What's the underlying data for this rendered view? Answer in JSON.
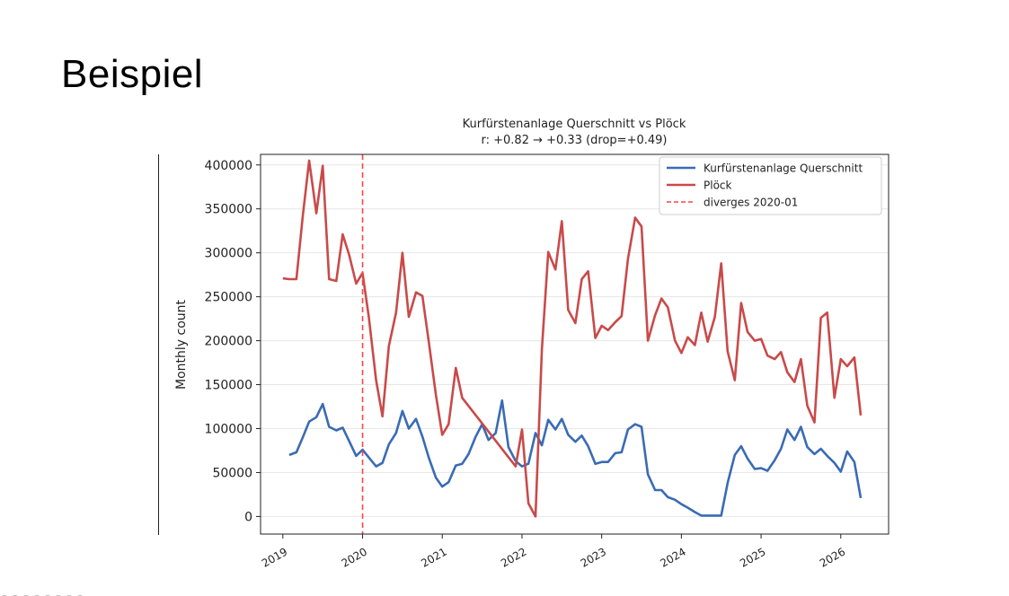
{
  "slide": {
    "title": "Beispiel"
  },
  "chart_data": {
    "type": "line",
    "title": "Kurfürstenanlage Querschnitt  vs  Plöck",
    "subtitle": "r: +0.82 → +0.33  (drop=+0.49)",
    "xlabel": "",
    "ylabel": "Monthly count",
    "x_ticks": [
      "2019",
      "2020",
      "2021",
      "2022",
      "2023",
      "2024",
      "2025",
      "2026"
    ],
    "y_ticks": [
      0,
      50000,
      100000,
      150000,
      200000,
      250000,
      300000,
      350000,
      400000
    ],
    "xlim": [
      2018.72,
      2026.6
    ],
    "ylim": [
      -20000,
      412000
    ],
    "grid": "y",
    "legend_position": "top-right",
    "series": [
      {
        "name": "Kurfürstenanlage Querschnitt",
        "color": "#3a6bb5",
        "points": [
          [
            2019.08,
            70000
          ],
          [
            2019.17,
            73000
          ],
          [
            2019.25,
            90000
          ],
          [
            2019.33,
            108000
          ],
          [
            2019.42,
            113000
          ],
          [
            2019.5,
            128000
          ],
          [
            2019.58,
            102000
          ],
          [
            2019.67,
            98000
          ],
          [
            2019.75,
            101000
          ],
          [
            2019.83,
            86000
          ],
          [
            2019.92,
            69000
          ],
          [
            2020.0,
            76000
          ],
          [
            2020.08,
            67000
          ],
          [
            2020.17,
            57000
          ],
          [
            2020.25,
            61000
          ],
          [
            2020.33,
            82000
          ],
          [
            2020.42,
            95000
          ],
          [
            2020.5,
            120000
          ],
          [
            2020.58,
            100000
          ],
          [
            2020.67,
            111000
          ],
          [
            2020.75,
            91000
          ],
          [
            2020.83,
            67000
          ],
          [
            2020.92,
            44000
          ],
          [
            2021.0,
            34000
          ],
          [
            2021.08,
            39000
          ],
          [
            2021.17,
            58000
          ],
          [
            2021.25,
            60000
          ],
          [
            2021.33,
            71000
          ],
          [
            2021.42,
            91000
          ],
          [
            2021.5,
            105000
          ],
          [
            2021.58,
            87000
          ],
          [
            2021.67,
            95000
          ],
          [
            2021.75,
            132000
          ],
          [
            2021.83,
            79000
          ],
          [
            2021.92,
            63000
          ],
          [
            2022.0,
            57000
          ],
          [
            2022.08,
            60000
          ],
          [
            2022.17,
            95000
          ],
          [
            2022.25,
            81000
          ],
          [
            2022.33,
            110000
          ],
          [
            2022.42,
            99000
          ],
          [
            2022.5,
            111000
          ],
          [
            2022.58,
            93000
          ],
          [
            2022.67,
            85000
          ],
          [
            2022.75,
            92000
          ],
          [
            2022.83,
            80000
          ],
          [
            2022.92,
            60000
          ],
          [
            2023.0,
            62000
          ],
          [
            2023.08,
            62000
          ],
          [
            2023.17,
            72000
          ],
          [
            2023.25,
            73000
          ],
          [
            2023.33,
            99000
          ],
          [
            2023.42,
            105000
          ],
          [
            2023.5,
            102000
          ],
          [
            2023.58,
            48000
          ],
          [
            2023.67,
            30000
          ],
          [
            2023.75,
            30000
          ],
          [
            2023.83,
            22000
          ],
          [
            2023.92,
            19000
          ],
          [
            2024.0,
            14000
          ],
          [
            2024.08,
            10000
          ],
          [
            2024.17,
            5000
          ],
          [
            2024.25,
            1000
          ],
          [
            2024.33,
            1000
          ],
          [
            2024.42,
            1000
          ],
          [
            2024.5,
            1000
          ],
          [
            2024.58,
            38000
          ],
          [
            2024.67,
            70000
          ],
          [
            2024.75,
            80000
          ],
          [
            2024.83,
            66000
          ],
          [
            2024.92,
            54000
          ],
          [
            2025.0,
            55000
          ],
          [
            2025.08,
            52000
          ],
          [
            2025.17,
            64000
          ],
          [
            2025.25,
            77000
          ],
          [
            2025.33,
            99000
          ],
          [
            2025.42,
            87000
          ],
          [
            2025.5,
            102000
          ],
          [
            2025.58,
            79000
          ],
          [
            2025.67,
            71000
          ],
          [
            2025.75,
            77000
          ],
          [
            2025.83,
            69000
          ],
          [
            2025.92,
            61000
          ],
          [
            2026.0,
            51000
          ],
          [
            2026.08,
            74000
          ],
          [
            2026.17,
            62000
          ],
          [
            2026.25,
            21000
          ]
        ]
      },
      {
        "name": "Plöck",
        "color": "#c94a4a",
        "points": [
          [
            2019.0,
            271000
          ],
          [
            2019.08,
            270000
          ],
          [
            2019.17,
            270000
          ],
          [
            2019.25,
            342000
          ],
          [
            2019.33,
            405000
          ],
          [
            2019.42,
            345000
          ],
          [
            2019.5,
            399000
          ],
          [
            2019.58,
            270000
          ],
          [
            2019.67,
            268000
          ],
          [
            2019.75,
            321000
          ],
          [
            2019.83,
            298000
          ],
          [
            2019.92,
            265000
          ],
          [
            2020.0,
            277000
          ],
          [
            2020.08,
            226000
          ],
          [
            2020.17,
            155000
          ],
          [
            2020.25,
            114000
          ],
          [
            2020.33,
            194000
          ],
          [
            2020.42,
            232000
          ],
          [
            2020.5,
            300000
          ],
          [
            2020.58,
            227000
          ],
          [
            2020.67,
            255000
          ],
          [
            2020.75,
            251000
          ],
          [
            2020.83,
            199000
          ],
          [
            2020.92,
            138000
          ],
          [
            2021.0,
            93000
          ],
          [
            2021.08,
            105000
          ],
          [
            2021.17,
            169000
          ],
          [
            2021.25,
            135000
          ],
          [
            2021.92,
            57000
          ],
          [
            2022.0,
            99000
          ],
          [
            2022.08,
            15000
          ],
          [
            2022.17,
            0
          ],
          [
            2022.25,
            190000
          ],
          [
            2022.33,
            301000
          ],
          [
            2022.42,
            281000
          ],
          [
            2022.5,
            336000
          ],
          [
            2022.58,
            235000
          ],
          [
            2022.67,
            220000
          ],
          [
            2022.75,
            270000
          ],
          [
            2022.83,
            279000
          ],
          [
            2022.92,
            203000
          ],
          [
            2023.0,
            217000
          ],
          [
            2023.08,
            212000
          ],
          [
            2023.17,
            221000
          ],
          [
            2023.25,
            228000
          ],
          [
            2023.33,
            293000
          ],
          [
            2023.42,
            340000
          ],
          [
            2023.5,
            330000
          ],
          [
            2023.58,
            200000
          ],
          [
            2023.67,
            229000
          ],
          [
            2023.75,
            248000
          ],
          [
            2023.83,
            238000
          ],
          [
            2023.92,
            200000
          ],
          [
            2024.0,
            186000
          ],
          [
            2024.08,
            204000
          ],
          [
            2024.17,
            195000
          ],
          [
            2024.25,
            232000
          ],
          [
            2024.33,
            199000
          ],
          [
            2024.42,
            227000
          ],
          [
            2024.5,
            288000
          ],
          [
            2024.58,
            188000
          ],
          [
            2024.67,
            155000
          ],
          [
            2024.75,
            243000
          ],
          [
            2024.83,
            210000
          ],
          [
            2024.92,
            200000
          ],
          [
            2025.0,
            202000
          ],
          [
            2025.08,
            183000
          ],
          [
            2025.17,
            179000
          ],
          [
            2025.25,
            187000
          ],
          [
            2025.33,
            164000
          ],
          [
            2025.42,
            153000
          ],
          [
            2025.5,
            179000
          ],
          [
            2025.58,
            126000
          ],
          [
            2025.67,
            107000
          ],
          [
            2025.75,
            226000
          ],
          [
            2025.83,
            232000
          ],
          [
            2025.92,
            135000
          ],
          [
            2026.0,
            179000
          ],
          [
            2026.08,
            171000
          ],
          [
            2026.17,
            181000
          ],
          [
            2026.25,
            115000
          ]
        ]
      }
    ],
    "vline": {
      "x": 2020.0,
      "label": "diverges 2020-01",
      "color": "#ff4444",
      "style": "dashed"
    }
  }
}
